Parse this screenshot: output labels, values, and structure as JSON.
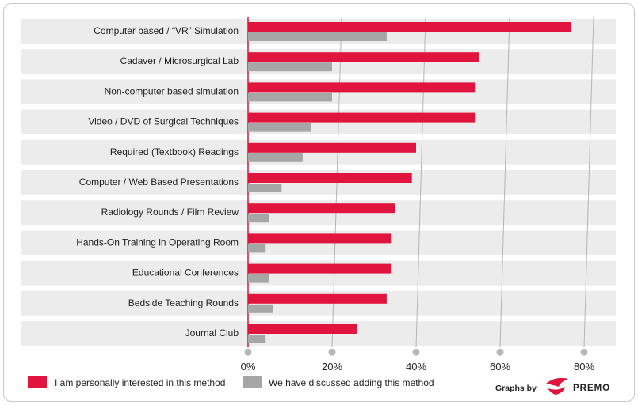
{
  "chart_data": {
    "type": "bar",
    "orientation": "horizontal",
    "categories": [
      "Computer based / “VR” Simulation",
      "Cadaver / Microsurgical Lab",
      "Non-computer based simulation",
      "Video / DVD of Surgical Techniques",
      "Required (Textbook) Readings",
      "Computer / Web Based Presentations",
      "Radiology Rounds / Film Review",
      "Hands-On Training in Operating Room",
      "Educational Conferences",
      "Bedside Teaching Rounds",
      "Journal Club"
    ],
    "series": [
      {
        "name": "I am personally interested in this method",
        "color": "#e0143c",
        "values": [
          77,
          55,
          54,
          54,
          40,
          39,
          35,
          34,
          34,
          33,
          26
        ]
      },
      {
        "name": "We have discussed adding this method",
        "color": "#a6a6a6",
        "values": [
          33,
          20,
          20,
          15,
          13,
          8,
          5,
          4,
          5,
          6,
          4
        ]
      }
    ],
    "xlim": [
      0,
      80
    ],
    "xticks": [
      "0%",
      "20%",
      "40%",
      "60%",
      "80%"
    ],
    "grid": true,
    "legend": "bottom-left"
  },
  "branding": {
    "prefix": "Graphs by",
    "name": "PREMO"
  }
}
